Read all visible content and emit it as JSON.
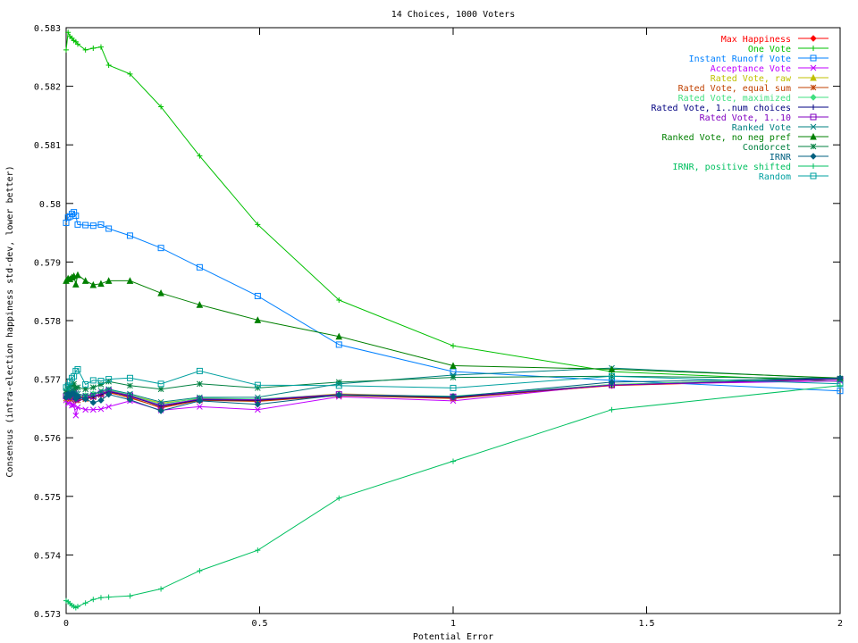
{
  "chart_data": {
    "type": "line",
    "title": "14 Choices, 1000 Voters",
    "xlabel": "Potential Error",
    "ylabel": "Consensus (intra-election happiness std-dev, lower better)",
    "xlim": [
      0,
      2
    ],
    "ylim": [
      0.573,
      0.583
    ],
    "xticks": [
      0,
      0.5,
      1,
      1.5,
      2
    ],
    "xtick_labels": [
      "0",
      "0.5",
      "1",
      "1.5",
      "2"
    ],
    "yticks": [
      0.573,
      0.574,
      0.575,
      0.576,
      0.577,
      0.578,
      0.579,
      0.58,
      0.581,
      0.582,
      0.583
    ],
    "ytick_labels": [
      "0.573",
      "0.574",
      "0.575",
      "0.576",
      "0.577",
      "0.578",
      "0.579",
      "0.58",
      "0.581",
      "0.582",
      "0.583"
    ],
    "grid": false,
    "legend_position": "top-right",
    "x": [
      0,
      0.005,
      0.01,
      0.015,
      0.02,
      0.025,
      0.03,
      0.05,
      0.07,
      0.09,
      0.11,
      0.165,
      0.245,
      0.345,
      0.495,
      0.705,
      1.0,
      1.41,
      2.0
    ],
    "series": [
      {
        "name": "Max Happiness",
        "color": "#ff0000",
        "marker": "diamond",
        "values": [
          0.57668,
          0.57674,
          0.57671,
          0.57675,
          0.57673,
          0.57666,
          0.57668,
          0.5767,
          0.57671,
          0.57674,
          0.57677,
          0.57669,
          0.57651,
          0.57664,
          0.57663,
          0.57673,
          0.57668,
          0.57689,
          0.577
        ]
      },
      {
        "name": "One Vote",
        "color": "#00c000",
        "marker": "plus",
        "values": [
          0.58262,
          0.58292,
          0.58285,
          0.58282,
          0.58278,
          0.58276,
          0.58272,
          0.58262,
          0.58265,
          0.58267,
          0.58236,
          0.58221,
          0.58165,
          0.58081,
          0.57964,
          0.57835,
          0.57757,
          0.57713,
          0.57696
        ]
      },
      {
        "name": "Instant Runoff Vote",
        "color": "#0080ff",
        "marker": "square",
        "values": [
          0.57967,
          0.57976,
          0.57978,
          0.57982,
          0.57985,
          0.57979,
          0.57964,
          0.57963,
          0.57962,
          0.57964,
          0.57957,
          0.57945,
          0.57924,
          0.57891,
          0.57842,
          0.57759,
          0.57713,
          0.57698,
          0.5768
        ]
      },
      {
        "name": "Acceptance Vote",
        "color": "#c000ff",
        "marker": "x",
        "values": [
          0.57664,
          0.57658,
          0.57661,
          0.57655,
          0.57656,
          0.57638,
          0.57652,
          0.57648,
          0.57648,
          0.57649,
          0.57653,
          0.57663,
          0.57647,
          0.57653,
          0.57648,
          0.5767,
          0.57663,
          0.57691,
          0.57697
        ]
      },
      {
        "name": "Rated Vote, raw",
        "color": "#c0c000",
        "marker": "triangle",
        "values": [
          0.57673,
          0.57679,
          0.57669,
          0.57676,
          0.57679,
          0.57672,
          0.57669,
          0.57671,
          0.57674,
          0.57678,
          0.57681,
          0.57673,
          0.57659,
          0.57667,
          0.57665,
          0.57675,
          0.5767,
          0.57691,
          0.57702
        ]
      },
      {
        "name": "Rated Vote, equal sum",
        "color": "#c04000",
        "marker": "star",
        "values": [
          0.57667,
          0.57671,
          0.57666,
          0.5767,
          0.57672,
          0.57664,
          0.57664,
          0.57666,
          0.57669,
          0.57673,
          0.57678,
          0.57668,
          0.57652,
          0.57664,
          0.57662,
          0.57672,
          0.57667,
          0.5769,
          0.577
        ]
      },
      {
        "name": "Rated Vote, maximized",
        "color": "#40e080",
        "marker": "diamond",
        "values": [
          0.57673,
          0.57677,
          0.57671,
          0.57679,
          0.57678,
          0.57671,
          0.57671,
          0.57672,
          0.57675,
          0.57678,
          0.57682,
          0.57673,
          0.57657,
          0.57668,
          0.57666,
          0.57674,
          0.57671,
          0.57691,
          0.57702
        ]
      },
      {
        "name": "Rated Vote, 1..num choices",
        "color": "#000080",
        "marker": "plus",
        "values": [
          0.5767,
          0.57672,
          0.5767,
          0.57674,
          0.57676,
          0.57665,
          0.57667,
          0.57668,
          0.5767,
          0.57674,
          0.57679,
          0.57671,
          0.57654,
          0.57665,
          0.57664,
          0.57673,
          0.57669,
          0.5769,
          0.57701
        ]
      },
      {
        "name": "Rated Vote, 1..10",
        "color": "#8000c0",
        "marker": "square",
        "values": [
          0.57671,
          0.57673,
          0.5767,
          0.57675,
          0.57677,
          0.57666,
          0.57668,
          0.57669,
          0.57671,
          0.57675,
          0.5768,
          0.57672,
          0.57655,
          0.57666,
          0.57665,
          0.57674,
          0.5767,
          0.5769,
          0.577
        ]
      },
      {
        "name": "Ranked Vote",
        "color": "#008080",
        "marker": "x",
        "values": [
          0.57673,
          0.57677,
          0.57676,
          0.57682,
          0.57684,
          0.57675,
          0.57675,
          0.57672,
          0.57674,
          0.5768,
          0.57683,
          0.57675,
          0.57661,
          0.57669,
          0.57669,
          0.57692,
          0.57707,
          0.57719,
          0.57701
        ]
      },
      {
        "name": "Ranked Vote, no neg pref",
        "color": "#008000",
        "marker": "triangle",
        "values": [
          0.57868,
          0.57872,
          0.57871,
          0.57874,
          0.57876,
          0.57862,
          0.57878,
          0.57868,
          0.57861,
          0.57863,
          0.57868,
          0.57868,
          0.57847,
          0.57827,
          0.57801,
          0.57773,
          0.57723,
          0.57717,
          0.57702
        ]
      },
      {
        "name": "Condorcet",
        "color": "#008040",
        "marker": "star",
        "values": [
          0.5768,
          0.57684,
          0.57687,
          0.5769,
          0.57692,
          0.57685,
          0.57686,
          0.57683,
          0.57686,
          0.57691,
          0.57696,
          0.57689,
          0.57683,
          0.57692,
          0.57685,
          0.57695,
          0.57703,
          0.57705,
          0.57701
        ]
      },
      {
        "name": "IRNR",
        "color": "#006080",
        "marker": "diamond",
        "values": [
          0.57669,
          0.57675,
          0.57671,
          0.57675,
          0.57675,
          0.57667,
          0.5767,
          0.57666,
          0.5766,
          0.57664,
          0.57674,
          0.57665,
          0.57646,
          0.57663,
          0.57657,
          0.57673,
          0.5767,
          0.57695,
          0.57702
        ]
      },
      {
        "name": "IRNR, positive shifted",
        "color": "#00c060",
        "marker": "plus",
        "values": [
          0.57322,
          0.5732,
          0.57317,
          0.57314,
          0.57312,
          0.5731,
          0.57312,
          0.57318,
          0.57324,
          0.57327,
          0.57328,
          0.5733,
          0.57342,
          0.57373,
          0.57408,
          0.57497,
          0.5756,
          0.57648,
          0.57689
        ]
      },
      {
        "name": "Random",
        "color": "#00a0a0",
        "marker": "square",
        "values": [
          0.57686,
          0.57689,
          0.57696,
          0.57702,
          0.57705,
          0.57714,
          0.57717,
          0.57691,
          0.57698,
          0.57697,
          0.577,
          0.57702,
          0.57692,
          0.57714,
          0.5769,
          0.57689,
          0.57685,
          0.57705,
          0.57692
        ]
      }
    ]
  }
}
